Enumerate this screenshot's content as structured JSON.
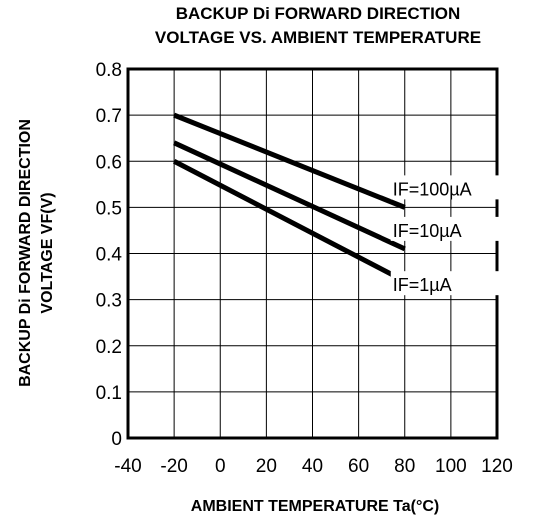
{
  "chart_data": {
    "type": "line",
    "title_lines": [
      "BACKUP Di FORWARD DIRECTION",
      "VOLTAGE  VS. AMBIENT TEMPERATURE"
    ],
    "xlabel": "AMBIENT TEMPERATURE Ta(°C)",
    "ylabel_lines": [
      "BACKUP Di FORWARD DIRECTION",
      "VOLTAGE VF(V)"
    ],
    "xlim": [
      -40,
      120
    ],
    "ylim": [
      0,
      0.8
    ],
    "x_ticks": [
      -40,
      -20,
      0,
      20,
      40,
      60,
      80,
      100,
      120
    ],
    "x_tick_labels": [
      "-40",
      "-20",
      "0",
      "20",
      "40",
      "60",
      "80",
      "100",
      "120"
    ],
    "y_ticks": [
      0,
      0.1,
      0.2,
      0.3,
      0.4,
      0.5,
      0.6,
      0.7,
      0.8
    ],
    "y_tick_labels": [
      "0",
      "0.1",
      "0.2",
      "0.3",
      "0.4",
      "0.5",
      "0.6",
      "0.7",
      "0.8"
    ],
    "grid": true,
    "series": [
      {
        "name": "IF=100µA",
        "x": [
          -20,
          80
        ],
        "y": [
          0.7,
          0.5
        ]
      },
      {
        "name": "IF=10µA",
        "x": [
          -20,
          80
        ],
        "y": [
          0.64,
          0.41
        ]
      },
      {
        "name": "IF=1µA",
        "x": [
          -20,
          80
        ],
        "y": [
          0.6,
          0.34
        ]
      }
    ],
    "line_color": "#000000"
  }
}
